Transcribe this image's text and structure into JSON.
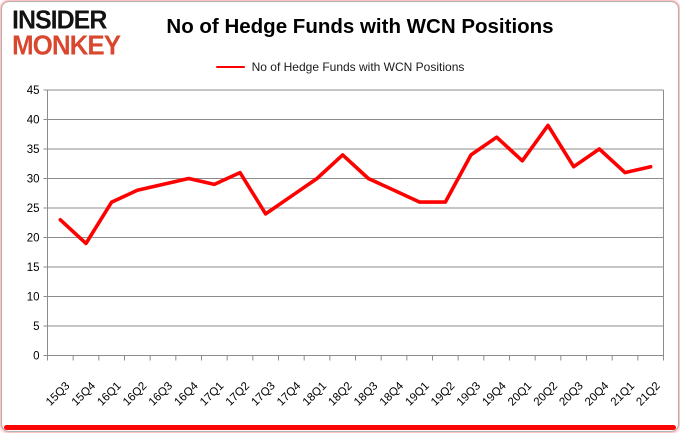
{
  "brand": {
    "line1": "INSIDER",
    "line2": "MONKEY"
  },
  "header": {
    "title": "No of Hedge Funds with WCN Positions"
  },
  "legend": {
    "label": "No of Hedge Funds with WCN Positions"
  },
  "colors": {
    "series_red": "#FF0000",
    "grid_gray": "#8C8C8C",
    "logo_red": "#D8472E",
    "logo_black": "#121212",
    "frame_red_bar": "#FB0505"
  },
  "chart_data": {
    "type": "line",
    "title": "No of Hedge Funds with WCN Positions",
    "series_name": "No of Hedge Funds with WCN Positions",
    "categories": [
      "15Q3",
      "15Q4",
      "16Q1",
      "16Q2",
      "16Q3",
      "16Q4",
      "17Q1",
      "17Q2",
      "17Q3",
      "17Q4",
      "18Q1",
      "18Q2",
      "18Q3",
      "18Q4",
      "19Q1",
      "19Q2",
      "19Q3",
      "19Q4",
      "20Q1",
      "20Q2",
      "20Q3",
      "20Q4",
      "21Q1",
      "21Q2"
    ],
    "values": [
      23,
      19,
      26,
      28,
      29,
      30,
      29,
      31,
      24,
      27,
      30,
      34,
      30,
      28,
      26,
      26,
      34,
      37,
      33,
      39,
      32,
      35,
      31,
      32
    ],
    "xlabel": "",
    "ylabel": "",
    "ylim": [
      0,
      45
    ],
    "ytick_step": 5,
    "yticks": [
      0,
      5,
      10,
      15,
      20,
      25,
      30,
      35,
      40,
      45
    ],
    "grid": true,
    "legend_position": "top",
    "line_color": "#FF0000",
    "grid_color": "#8C8C8C",
    "tick_label_size": 11.5
  }
}
